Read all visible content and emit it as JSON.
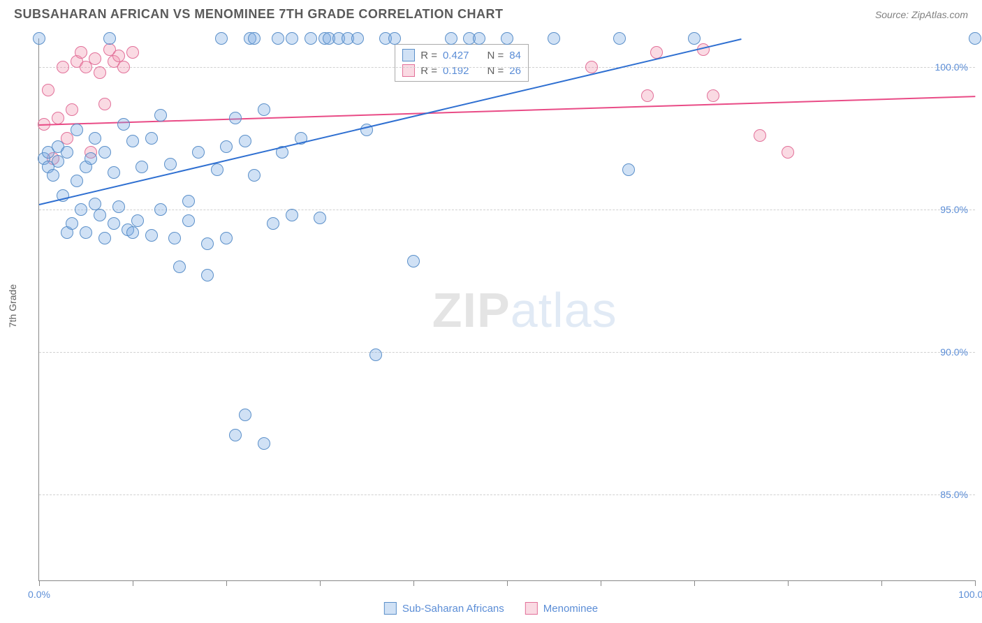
{
  "header": {
    "title": "SUBSAHARAN AFRICAN VS MENOMINEE 7TH GRADE CORRELATION CHART",
    "source": "Source: ZipAtlas.com"
  },
  "chart": {
    "type": "scatter",
    "y_axis_label": "7th Grade",
    "xlim": [
      0,
      100
    ],
    "ylim": [
      82,
      101
    ],
    "y_ticks": [
      85.0,
      90.0,
      95.0,
      100.0
    ],
    "y_tick_labels": [
      "85.0%",
      "90.0%",
      "95.0%",
      "100.0%"
    ],
    "x_ticks": [
      0,
      10,
      20,
      30,
      40,
      50,
      60,
      70,
      80,
      90,
      100
    ],
    "x_tick_labels_shown": {
      "0": "0.0%",
      "100": "100.0%"
    },
    "grid_color": "#d0d0d0",
    "background_color": "#ffffff",
    "marker_radius": 9,
    "marker_border_width": 1.2,
    "series": {
      "subsaharan": {
        "label": "Sub-Saharan Africans",
        "fill_color": "rgba(120,170,225,0.35)",
        "border_color": "#5a8fc9",
        "trend_line_color": "#2e6fd1",
        "trend_start": {
          "x": 0,
          "y": 95.2
        },
        "trend_end": {
          "x": 75,
          "y": 101.0
        },
        "stats": {
          "R": "0.427",
          "N": "84"
        },
        "points": [
          {
            "x": 0,
            "y": 101
          },
          {
            "x": 0.5,
            "y": 96.8
          },
          {
            "x": 1,
            "y": 96.5
          },
          {
            "x": 1,
            "y": 97.0
          },
          {
            "x": 1.5,
            "y": 96.2
          },
          {
            "x": 2,
            "y": 96.7
          },
          {
            "x": 2,
            "y": 97.2
          },
          {
            "x": 2.5,
            "y": 95.5
          },
          {
            "x": 3,
            "y": 97.0
          },
          {
            "x": 3,
            "y": 94.2
          },
          {
            "x": 3.5,
            "y": 94.5
          },
          {
            "x": 4,
            "y": 97.8
          },
          {
            "x": 4,
            "y": 96.0
          },
          {
            "x": 4.5,
            "y": 95.0
          },
          {
            "x": 5,
            "y": 96.5
          },
          {
            "x": 5,
            "y": 94.2
          },
          {
            "x": 5.5,
            "y": 96.8
          },
          {
            "x": 6,
            "y": 97.5
          },
          {
            "x": 6,
            "y": 95.2
          },
          {
            "x": 6.5,
            "y": 94.8
          },
          {
            "x": 7,
            "y": 97.0
          },
          {
            "x": 7,
            "y": 94.0
          },
          {
            "x": 7.5,
            "y": 101
          },
          {
            "x": 8,
            "y": 96.3
          },
          {
            "x": 8,
            "y": 94.5
          },
          {
            "x": 8.5,
            "y": 95.1
          },
          {
            "x": 9,
            "y": 98.0
          },
          {
            "x": 9.5,
            "y": 94.3
          },
          {
            "x": 10,
            "y": 97.4
          },
          {
            "x": 10,
            "y": 94.2
          },
          {
            "x": 10.5,
            "y": 94.6
          },
          {
            "x": 11,
            "y": 96.5
          },
          {
            "x": 12,
            "y": 97.5
          },
          {
            "x": 12,
            "y": 94.1
          },
          {
            "x": 13,
            "y": 98.3
          },
          {
            "x": 13,
            "y": 95.0
          },
          {
            "x": 14,
            "y": 96.6
          },
          {
            "x": 14.5,
            "y": 94.0
          },
          {
            "x": 15,
            "y": 93.0
          },
          {
            "x": 16,
            "y": 95.3
          },
          {
            "x": 16,
            "y": 94.6
          },
          {
            "x": 17,
            "y": 97.0
          },
          {
            "x": 18,
            "y": 93.8
          },
          {
            "x": 18,
            "y": 92.7
          },
          {
            "x": 19,
            "y": 96.4
          },
          {
            "x": 19.5,
            "y": 101
          },
          {
            "x": 20,
            "y": 97.2
          },
          {
            "x": 20,
            "y": 94.0
          },
          {
            "x": 21,
            "y": 98.2
          },
          {
            "x": 21,
            "y": 87.1
          },
          {
            "x": 22,
            "y": 97.4
          },
          {
            "x": 22,
            "y": 87.8
          },
          {
            "x": 22.5,
            "y": 101
          },
          {
            "x": 23,
            "y": 101
          },
          {
            "x": 23,
            "y": 96.2
          },
          {
            "x": 24,
            "y": 98.5
          },
          {
            "x": 24,
            "y": 86.8
          },
          {
            "x": 25,
            "y": 94.5
          },
          {
            "x": 25.5,
            "y": 101
          },
          {
            "x": 26,
            "y": 97.0
          },
          {
            "x": 27,
            "y": 101
          },
          {
            "x": 27,
            "y": 94.8
          },
          {
            "x": 28,
            "y": 97.5
          },
          {
            "x": 29,
            "y": 101
          },
          {
            "x": 30,
            "y": 94.7
          },
          {
            "x": 30.5,
            "y": 101
          },
          {
            "x": 31,
            "y": 101
          },
          {
            "x": 32,
            "y": 101
          },
          {
            "x": 33,
            "y": 101
          },
          {
            "x": 34,
            "y": 101
          },
          {
            "x": 35,
            "y": 97.8
          },
          {
            "x": 36,
            "y": 89.9
          },
          {
            "x": 37,
            "y": 101
          },
          {
            "x": 38,
            "y": 101
          },
          {
            "x": 40,
            "y": 93.2
          },
          {
            "x": 44,
            "y": 101
          },
          {
            "x": 46,
            "y": 101
          },
          {
            "x": 47,
            "y": 101
          },
          {
            "x": 50,
            "y": 101
          },
          {
            "x": 55,
            "y": 101
          },
          {
            "x": 62,
            "y": 101
          },
          {
            "x": 63,
            "y": 96.4
          },
          {
            "x": 70,
            "y": 101
          },
          {
            "x": 100,
            "y": 101
          }
        ]
      },
      "menominee": {
        "label": "Menominee",
        "fill_color": "rgba(240,150,175,0.35)",
        "border_color": "#e27099",
        "trend_line_color": "#e94b86",
        "trend_start": {
          "x": 0,
          "y": 98.0
        },
        "trend_end": {
          "x": 100,
          "y": 99.0
        },
        "stats": {
          "R": "0.192",
          "N": "26"
        },
        "points": [
          {
            "x": 0.5,
            "y": 98.0
          },
          {
            "x": 1,
            "y": 99.2
          },
          {
            "x": 1.5,
            "y": 96.8
          },
          {
            "x": 2,
            "y": 98.2
          },
          {
            "x": 2.5,
            "y": 100.0
          },
          {
            "x": 3,
            "y": 97.5
          },
          {
            "x": 3.5,
            "y": 98.5
          },
          {
            "x": 4,
            "y": 100.2
          },
          {
            "x": 4.5,
            "y": 100.5
          },
          {
            "x": 5,
            "y": 100.0
          },
          {
            "x": 5.5,
            "y": 97.0
          },
          {
            "x": 6,
            "y": 100.3
          },
          {
            "x": 6.5,
            "y": 99.8
          },
          {
            "x": 7,
            "y": 98.7
          },
          {
            "x": 7.5,
            "y": 100.6
          },
          {
            "x": 8,
            "y": 100.2
          },
          {
            "x": 8.5,
            "y": 100.4
          },
          {
            "x": 9,
            "y": 100.0
          },
          {
            "x": 10,
            "y": 100.5
          },
          {
            "x": 59,
            "y": 100.0
          },
          {
            "x": 65,
            "y": 99.0
          },
          {
            "x": 66,
            "y": 100.5
          },
          {
            "x": 71,
            "y": 100.6
          },
          {
            "x": 72,
            "y": 99.0
          },
          {
            "x": 77,
            "y": 97.6
          },
          {
            "x": 80,
            "y": 97.0
          }
        ]
      }
    },
    "watermark": {
      "part1": "ZIP",
      "part2": "atlas"
    }
  },
  "legend": {
    "series1": "Sub-Saharan Africans",
    "series2": "Menominee"
  },
  "stats_box": {
    "r_label": "R =",
    "n_label": "N ="
  }
}
